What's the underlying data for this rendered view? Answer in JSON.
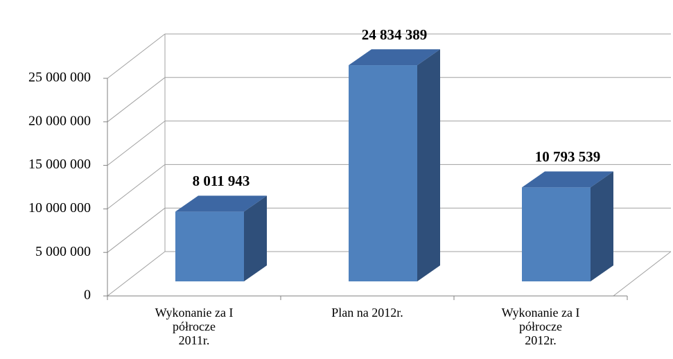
{
  "chart_data": {
    "type": "bar3d",
    "categories": [
      "Wykonanie za I\npółrocze\n2011r.",
      "Plan na 2012r.",
      "Wykonanie za I\npółrocze\n2012r."
    ],
    "values": [
      8011943,
      24834389,
      10793539
    ],
    "value_labels": [
      "8 011 943",
      "24 834 389",
      "10 793 539"
    ],
    "color": "#4f81bd",
    "ylim": [
      0,
      25000000
    ],
    "yticks": [
      0,
      {
        "value": 5000000,
        "label": "5 000 000"
      },
      {
        "value": 10000000,
        "label": "10 000 000"
      },
      {
        "value": 15000000,
        "label": "15 000 000"
      },
      {
        "value": 20000000,
        "label": "20 000 000"
      },
      {
        "value": 25000000,
        "label": "25 000 000"
      }
    ],
    "grid": true
  }
}
